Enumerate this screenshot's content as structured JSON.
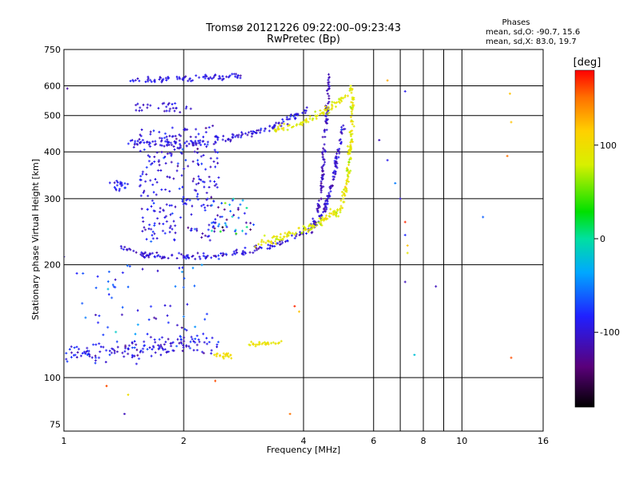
{
  "chart_data": {
    "type": "scatter",
    "title": "Tromsø 20121226 09:22:00–09:23:43",
    "subtitle": "RwPretec (Bp)",
    "xlabel": "Frequency [MHz]",
    "ylabel": "Stationary phase Virtual Height [km]",
    "x_scale": "log",
    "y_scale": "log",
    "xlim": [
      1,
      16
    ],
    "ylim": [
      72,
      750
    ],
    "x_ticks": [
      1,
      2,
      4,
      6,
      8,
      10,
      16
    ],
    "x_tick_labels": [
      "1",
      "2",
      "4",
      "6",
      "8",
      "10",
      "16"
    ],
    "x_minor_gridlines": [
      7,
      9
    ],
    "y_ticks": [
      75,
      100,
      200,
      300,
      400,
      500,
      600,
      750
    ],
    "y_tick_labels": [
      "75",
      "100",
      "200",
      "300",
      "400",
      "500",
      "600",
      "750"
    ],
    "grid": true,
    "phase_stats": {
      "heading": "Phases",
      "line_o": "mean, sd,O: -90.7, 15.6",
      "line_x": "mean, sd,X:  83.0, 19.7"
    },
    "colorbar": {
      "label": "[deg]",
      "min": -180,
      "max": 180,
      "ticks": [
        100,
        0,
        -100
      ],
      "tick_labels": [
        "100",
        "0",
        "-100"
      ],
      "colormap": "black-purple-blue-cyan-green-yellow-orange-red"
    },
    "series": [
      {
        "kind": "band",
        "note": "F2 O-mode lower trace",
        "path": [
          [
            1.35,
            225
          ],
          [
            1.6,
            213
          ],
          [
            2.0,
            210
          ],
          [
            2.5,
            212
          ],
          [
            3.0,
            218
          ],
          [
            3.5,
            228
          ],
          [
            3.9,
            240
          ],
          [
            4.2,
            252
          ],
          [
            4.4,
            265
          ],
          [
            4.55,
            285
          ],
          [
            4.65,
            310
          ],
          [
            4.75,
            340
          ],
          [
            4.85,
            380
          ],
          [
            4.95,
            430
          ],
          [
            5.05,
            480
          ]
        ],
        "n": 240,
        "dlogx": 0.006,
        "dlogy": 0.012,
        "phase": -100,
        "phase_sd": 12
      },
      {
        "kind": "band",
        "note": "F2 X-mode trace",
        "path": [
          [
            3.0,
            228
          ],
          [
            3.5,
            235
          ],
          [
            4.0,
            248
          ],
          [
            4.4,
            260
          ],
          [
            4.8,
            275
          ],
          [
            5.0,
            290
          ],
          [
            5.1,
            320
          ],
          [
            5.2,
            360
          ],
          [
            5.25,
            420
          ],
          [
            5.3,
            500
          ],
          [
            5.3,
            560
          ]
        ],
        "n": 220,
        "dlogx": 0.006,
        "dlogy": 0.014,
        "phase": 90,
        "phase_sd": 12
      },
      {
        "kind": "band",
        "note": "F2 O-mode upper branch",
        "path": [
          [
            4.2,
            250
          ],
          [
            4.35,
            280
          ],
          [
            4.45,
            330
          ],
          [
            4.5,
            400
          ],
          [
            4.55,
            470
          ],
          [
            4.6,
            540
          ],
          [
            4.65,
            620
          ]
        ],
        "n": 110,
        "dlogx": 0.005,
        "dlogy": 0.02,
        "phase": -110,
        "phase_sd": 8
      },
      {
        "kind": "band",
        "note": "multi-hop 2F O trace",
        "path": [
          [
            1.45,
            425
          ],
          [
            2.0,
            420
          ],
          [
            2.6,
            435
          ],
          [
            3.0,
            450
          ],
          [
            3.4,
            470
          ],
          [
            3.8,
            495
          ],
          [
            4.1,
            520
          ]
        ],
        "n": 150,
        "dlogx": 0.006,
        "dlogy": 0.012,
        "phase": -95,
        "phase_sd": 10
      },
      {
        "kind": "band",
        "note": "multi-hop 2F X trace",
        "path": [
          [
            3.4,
            458
          ],
          [
            3.8,
            470
          ],
          [
            4.2,
            490
          ],
          [
            4.6,
            520
          ],
          [
            5.0,
            550
          ],
          [
            5.3,
            590
          ]
        ],
        "n": 90,
        "dlogx": 0.005,
        "dlogy": 0.012,
        "phase": 90,
        "phase_sd": 10
      },
      {
        "kind": "band",
        "note": "E/Es region trace",
        "path": [
          [
            1.0,
            115
          ],
          [
            1.3,
            118
          ],
          [
            1.6,
            120
          ],
          [
            2.0,
            123
          ],
          [
            2.5,
            123
          ]
        ],
        "n": 160,
        "dlogx": 0.01,
        "dlogy": 0.03,
        "phase": -95,
        "phase_sd": 15
      },
      {
        "kind": "band",
        "note": "Es X-mode short trace",
        "path": [
          [
            2.9,
            123
          ],
          [
            3.2,
            123
          ],
          [
            3.5,
            124
          ]
        ],
        "n": 30,
        "dlogx": 0.006,
        "dlogy": 0.008,
        "phase": 95,
        "phase_sd": 8
      },
      {
        "kind": "band",
        "note": "Es X-mode segment",
        "path": [
          [
            2.4,
            115
          ],
          [
            2.65,
            114
          ]
        ],
        "n": 22,
        "dlogx": 0.006,
        "dlogy": 0.01,
        "phase": 100,
        "phase_sd": 6
      },
      {
        "kind": "band",
        "note": "top trace near 630 km",
        "path": [
          [
            1.45,
            620
          ],
          [
            2.0,
            628
          ],
          [
            2.6,
            635
          ],
          [
            2.8,
            640
          ]
        ],
        "n": 80,
        "dlogx": 0.006,
        "dlogy": 0.01,
        "phase": -95,
        "phase_sd": 8
      },
      {
        "kind": "cloud",
        "note": "diffuse spread-F echoes",
        "xr": [
          1.55,
          2.45
        ],
        "yr": [
          230,
          470
        ],
        "n": 260,
        "phase": -95,
        "phase_sd": 14
      },
      {
        "kind": "cloud",
        "note": "sparse echoes 520 km",
        "xr": [
          1.5,
          2.1
        ],
        "yr": [
          510,
          540
        ],
        "n": 30,
        "phase": -100,
        "phase_sd": 10
      },
      {
        "kind": "cloud",
        "note": "sparse echoes 320 km",
        "xr": [
          1.3,
          1.45
        ],
        "yr": [
          315,
          335
        ],
        "n": 20,
        "phase": -90,
        "phase_sd": 10
      },
      {
        "kind": "cloud",
        "note": "sparse echoes 130-200 km",
        "xr": [
          1.05,
          2.3
        ],
        "yr": [
          128,
          200
        ],
        "n": 60,
        "phase": -80,
        "phase_sd": 25
      },
      {
        "kind": "cloud",
        "note": "mixed echoes 240-300 km",
        "xr": [
          2.3,
          3.0
        ],
        "yr": [
          240,
          300
        ],
        "n": 45,
        "phase": -60,
        "phase_sd": 50
      }
    ],
    "isolated_points": [
      [
        6.2,
        430,
        -110
      ],
      [
        6.5,
        380,
        -90
      ],
      [
        6.8,
        330,
        -50
      ],
      [
        7.0,
        300,
        -100
      ],
      [
        7.2,
        260,
        170
      ],
      [
        7.2,
        240,
        -80
      ],
      [
        7.3,
        225,
        120
      ],
      [
        7.3,
        215,
        90
      ],
      [
        7.2,
        180,
        -110
      ],
      [
        7.6,
        115,
        -20
      ],
      [
        8.6,
        175,
        -110
      ],
      [
        11.3,
        268,
        -60
      ],
      [
        13.2,
        572,
        120
      ],
      [
        13.3,
        480,
        120
      ],
      [
        13.0,
        390,
        150
      ],
      [
        13.3,
        113,
        160
      ],
      [
        6.5,
        620,
        130
      ],
      [
        7.2,
        580,
        -90
      ],
      [
        3.7,
        80,
        150
      ],
      [
        3.8,
        155,
        170
      ],
      [
        3.9,
        150,
        120
      ],
      [
        2.4,
        98,
        160
      ],
      [
        1.45,
        90,
        100
      ],
      [
        1.42,
        80,
        -110
      ],
      [
        1.28,
        95,
        160
      ],
      [
        1.0,
        210,
        -100
      ],
      [
        1.02,
        590,
        -120
      ]
    ]
  }
}
